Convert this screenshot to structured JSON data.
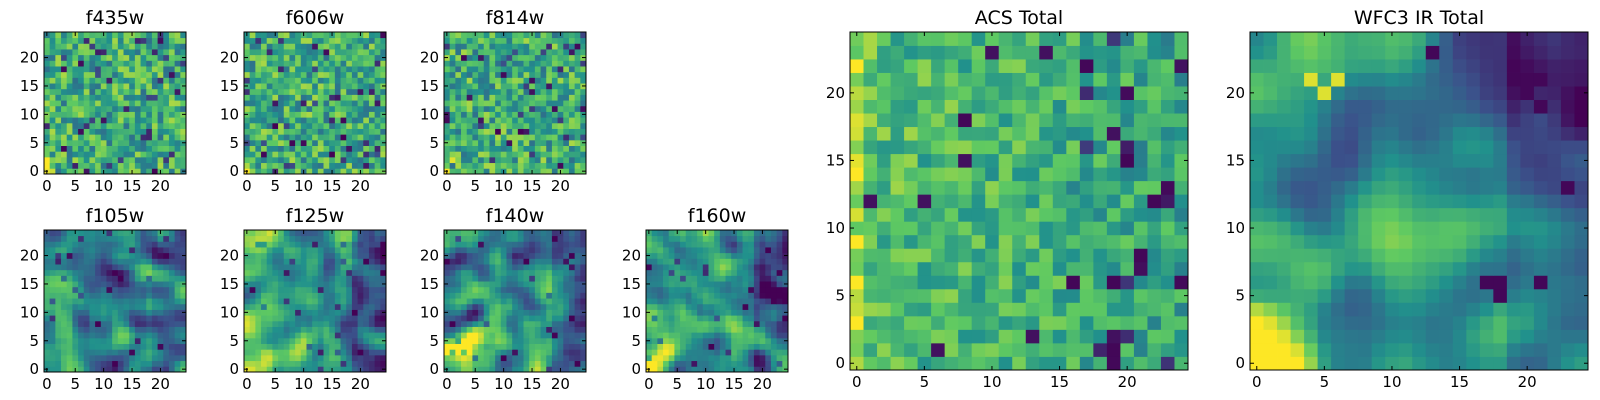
{
  "figure": {
    "colormap": "viridis",
    "colors": {
      "background": "#ffffff",
      "axis": "#000000",
      "viridis_stops": [
        "#440154",
        "#3b528b",
        "#21918c",
        "#5ec962",
        "#fde725"
      ]
    }
  },
  "chart_data": [
    {
      "type": "heatmap",
      "title": "f435w",
      "grid": [
        25,
        25
      ],
      "xlim": [
        -0.5,
        24.5
      ],
      "ylim": [
        -0.5,
        24.5
      ],
      "xticks": [
        0,
        5,
        10,
        15,
        20
      ],
      "yticks": [
        0,
        5,
        10,
        15,
        20
      ],
      "xtick_labels": [
        "0",
        "5",
        "10",
        "15",
        "20"
      ],
      "ytick_labels": [
        "0",
        "5",
        "10",
        "15",
        "20"
      ],
      "values": "25x25 noisy pixel intensities, mostly green-yellow with scattered dark pixels"
    },
    {
      "type": "heatmap",
      "title": "f606w",
      "grid": [
        25,
        25
      ],
      "xlim": [
        -0.5,
        24.5
      ],
      "ylim": [
        -0.5,
        24.5
      ],
      "xticks": [
        0,
        5,
        10,
        15,
        20
      ],
      "yticks": [
        0,
        5,
        10,
        15,
        20
      ],
      "xtick_labels": [
        "0",
        "5",
        "10",
        "15",
        "20"
      ],
      "ytick_labels": [
        "0",
        "5",
        "10",
        "15",
        "20"
      ],
      "values": "25x25 noisy pixel intensities, mostly green with scattered dark pixels"
    },
    {
      "type": "heatmap",
      "title": "f814w",
      "grid": [
        25,
        25
      ],
      "xlim": [
        -0.5,
        24.5
      ],
      "ylim": [
        -0.5,
        24.5
      ],
      "xticks": [
        0,
        5,
        10,
        15,
        20
      ],
      "yticks": [
        0,
        5,
        10,
        15,
        20
      ],
      "xtick_labels": [
        "0",
        "5",
        "10",
        "15",
        "20"
      ],
      "ytick_labels": [
        "0",
        "5",
        "10",
        "15",
        "20"
      ],
      "values": "25x25 noisy pixel intensities, mostly green with scattered dark pixels"
    },
    {
      "type": "heatmap",
      "title": "f105w",
      "grid": [
        25,
        25
      ],
      "xlim": [
        -0.5,
        24.5
      ],
      "ylim": [
        -0.5,
        24.5
      ],
      "xticks": [
        0,
        5,
        10,
        15,
        20
      ],
      "yticks": [
        0,
        5,
        10,
        15,
        20
      ],
      "xtick_labels": [
        "0",
        "5",
        "10",
        "15",
        "20"
      ],
      "ytick_labels": [
        "0",
        "5",
        "10",
        "15",
        "20"
      ],
      "values": "25x25 smooth field, bright lower-left, darker upper-right"
    },
    {
      "type": "heatmap",
      "title": "f125w",
      "grid": [
        25,
        25
      ],
      "xlim": [
        -0.5,
        24.5
      ],
      "ylim": [
        -0.5,
        24.5
      ],
      "xticks": [
        0,
        5,
        10,
        15,
        20
      ],
      "yticks": [
        0,
        5,
        10,
        15,
        20
      ],
      "xtick_labels": [
        "0",
        "5",
        "10",
        "15",
        "20"
      ],
      "ytick_labels": [
        "0",
        "5",
        "10",
        "15",
        "20"
      ],
      "values": "25x25 smooth field, bright lower-left and upper-left, darker right"
    },
    {
      "type": "heatmap",
      "title": "f140w",
      "grid": [
        25,
        25
      ],
      "xlim": [
        -0.5,
        24.5
      ],
      "ylim": [
        -0.5,
        24.5
      ],
      "xticks": [
        0,
        5,
        10,
        15,
        20
      ],
      "yticks": [
        0,
        5,
        10,
        15,
        20
      ],
      "xtick_labels": [
        "0",
        "5",
        "10",
        "15",
        "20"
      ],
      "ytick_labels": [
        "0",
        "5",
        "10",
        "15",
        "20"
      ],
      "values": "25x25 smooth field, bright left, darker right"
    },
    {
      "type": "heatmap",
      "title": "f160w",
      "grid": [
        25,
        25
      ],
      "xlim": [
        -0.5,
        24.5
      ],
      "ylim": [
        -0.5,
        24.5
      ],
      "xticks": [
        0,
        5,
        10,
        15,
        20
      ],
      "yticks": [
        0,
        5,
        10,
        15,
        20
      ],
      "xtick_labels": [
        "0",
        "5",
        "10",
        "15",
        "20"
      ],
      "ytick_labels": [
        "0",
        "5",
        "10",
        "15",
        "20"
      ],
      "values": "25x25 smooth field, bright lower-left, darker right"
    },
    {
      "type": "heatmap",
      "title": "ACS Total",
      "grid": [
        25,
        25
      ],
      "xlim": [
        -0.5,
        24.5
      ],
      "ylim": [
        -0.5,
        24.5
      ],
      "xticks": [
        0,
        5,
        10,
        15,
        20
      ],
      "yticks": [
        0,
        5,
        10,
        15,
        20
      ],
      "xtick_labels": [
        "0",
        "5",
        "10",
        "15",
        "20"
      ],
      "ytick_labels": [
        "0",
        "5",
        "10",
        "15",
        "20"
      ],
      "values": "25x25 noisy pixel intensities, green-yellow, brighter left column, scattered dark pixels on right"
    },
    {
      "type": "heatmap",
      "title": "WFC3 IR Total",
      "grid": [
        25,
        25
      ],
      "xlim": [
        -0.5,
        24.5
      ],
      "ylim": [
        -0.5,
        24.5
      ],
      "xticks": [
        0,
        5,
        10,
        15,
        20
      ],
      "yticks": [
        0,
        5,
        10,
        15,
        20
      ],
      "xtick_labels": [
        "0",
        "5",
        "10",
        "15",
        "20"
      ],
      "ytick_labels": [
        "0",
        "5",
        "10",
        "15",
        "20"
      ],
      "values": "25x25 smooth field, bright yellow lower-left, dark purple patches upper-right and around (17,6)"
    }
  ]
}
